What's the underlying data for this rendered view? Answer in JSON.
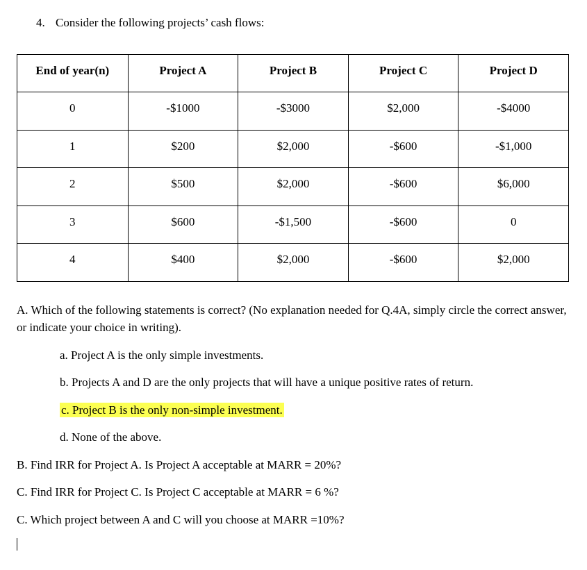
{
  "question_number": "4.",
  "question_text": "Consider the following projects’ cash flows:",
  "table": {
    "columns": [
      "End of year(n)",
      "Project A",
      "Project B",
      "Project C",
      "Project D"
    ],
    "rows": [
      [
        "0",
        "-$1000",
        "-$3000",
        "$2,000",
        "-$4000"
      ],
      [
        "1",
        "$200",
        "$2,000",
        "-$600",
        "-$1,000"
      ],
      [
        "2",
        "$500",
        "$2,000",
        "-$600",
        "$6,000"
      ],
      [
        "3",
        "$600",
        "-$1,500",
        "-$600",
        "0"
      ],
      [
        "4",
        "$400",
        "$2,000",
        "-$600",
        "$2,000"
      ]
    ]
  },
  "partA_text": "A. Which of the following statements is correct?  (No explanation needed for Q.4A, simply circle the correct answer, or indicate your choice in writing).",
  "options": {
    "a": "a. Project A is the only simple investments.",
    "b": "b. Projects A and D are the only projects that will have a unique positive rates of return.",
    "c": "c. Project B is the only non-simple investment.",
    "d": "d. None of the above."
  },
  "highlighted_option": "c",
  "partB": "B. Find IRR for Project A. Is Project A acceptable at MARR = 20%?",
  "partC": "C. Find IRR for Project C. Is Project C acceptable at MARR = 6 %?",
  "partC2": "C. Which project between A and C will you choose at MARR =10%?"
}
